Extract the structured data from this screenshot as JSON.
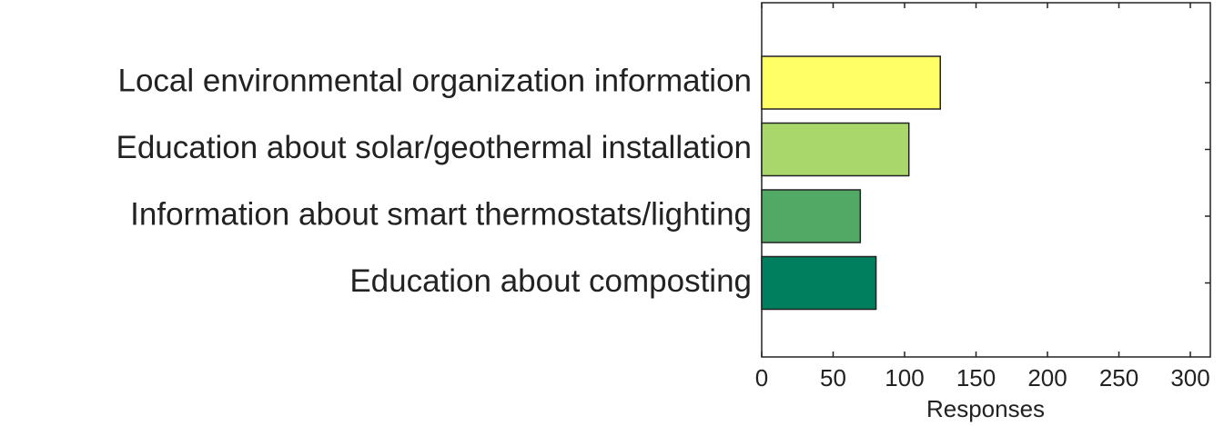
{
  "chart_data": {
    "type": "barh",
    "categories": [
      "Local environmental organization information",
      "Education about solar/geothermal installation",
      "Information about smart thermostats/lighting",
      "Education about composting"
    ],
    "values": [
      125,
      103,
      69,
      80
    ],
    "colors": [
      "#ffff66",
      "#a9d76b",
      "#52a865",
      "#007f5f"
    ],
    "xlabel": "Responses",
    "xlim": [
      0,
      314
    ],
    "xticks": [
      0,
      50,
      100,
      150,
      200,
      250,
      300
    ],
    "grid": false
  }
}
